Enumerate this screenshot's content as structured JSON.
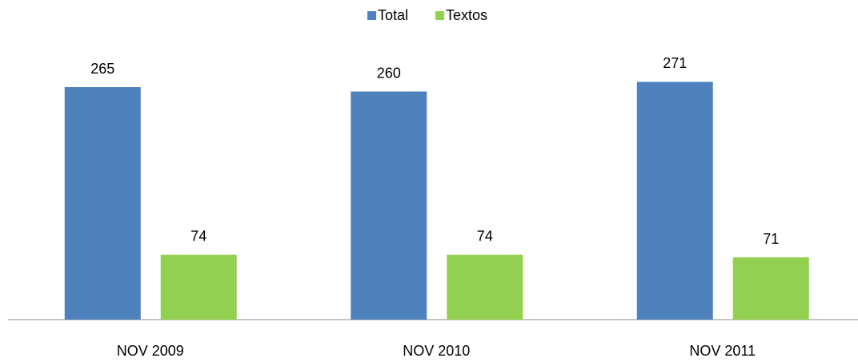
{
  "chart_data": {
    "type": "bar",
    "categories": [
      "NOV 2009",
      "NOV 2010",
      "NOV 2011"
    ],
    "series": [
      {
        "name": "Total",
        "color": "#4f81bd",
        "values": [
          265,
          260,
          271
        ]
      },
      {
        "name": "Textos",
        "color": "#92d050",
        "values": [
          74,
          74,
          71
        ]
      }
    ],
    "legend": "top"
  }
}
